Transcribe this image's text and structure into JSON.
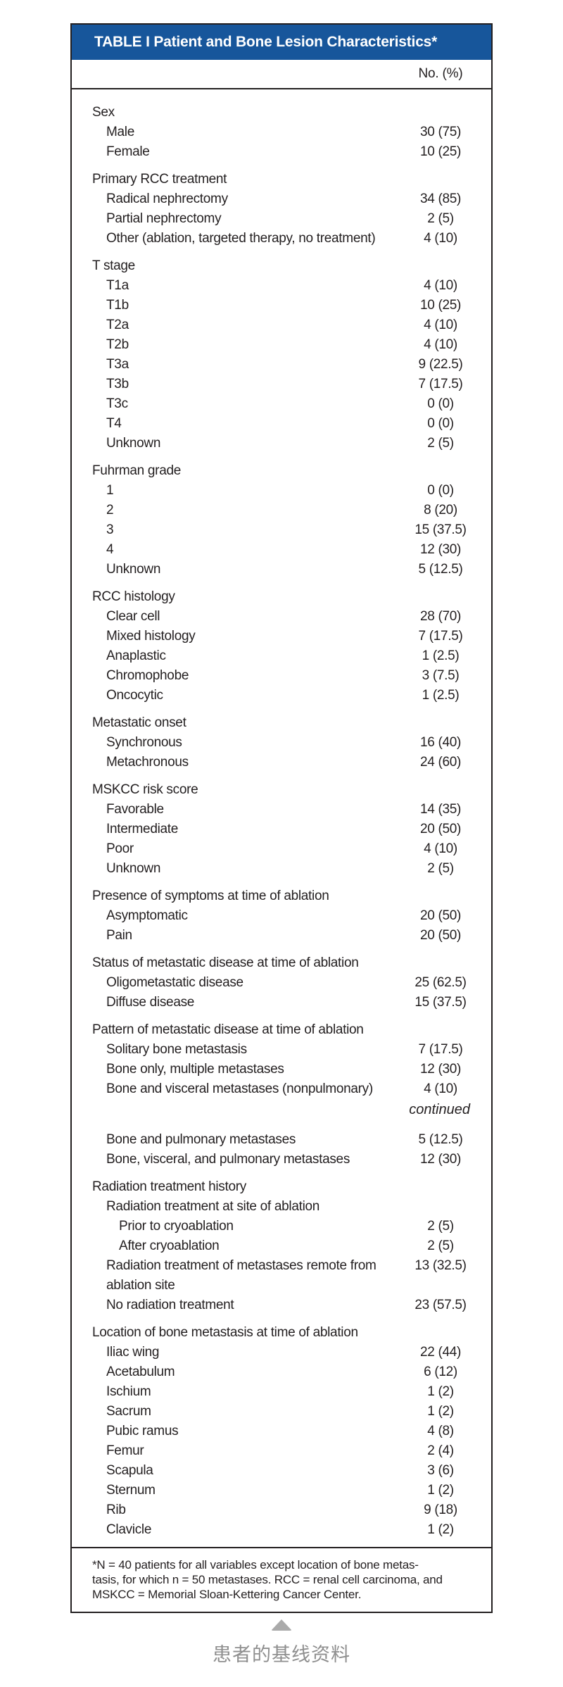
{
  "table": {
    "title": "TABLE I Patient and Bone Lesion Characteristics*",
    "column_header": "No. (%)",
    "colors": {
      "header_bg": "#17569b",
      "header_text": "#ffffff",
      "border": "#231f20",
      "body_text": "#231f20",
      "caption_gray": "#8f8f8f"
    },
    "rows": [
      {
        "type": "group",
        "label": "Sex"
      },
      {
        "type": "item",
        "label": "Male",
        "value": "30 (75)"
      },
      {
        "type": "item",
        "label": "Female",
        "value": "10 (25)"
      },
      {
        "type": "group",
        "label": "Primary RCC treatment"
      },
      {
        "type": "item",
        "label": "Radical nephrectomy",
        "value": "34 (85)"
      },
      {
        "type": "item",
        "label": "Partial nephrectomy",
        "value": "2 (5)"
      },
      {
        "type": "item",
        "label": "Other (ablation, targeted therapy, no treatment)",
        "value": "4 (10)"
      },
      {
        "type": "group",
        "label": "T stage"
      },
      {
        "type": "item",
        "label": "T1a",
        "value": "4 (10)"
      },
      {
        "type": "item",
        "label": "T1b",
        "value": "10 (25)"
      },
      {
        "type": "item",
        "label": "T2a",
        "value": "4 (10)"
      },
      {
        "type": "item",
        "label": "T2b",
        "value": "4 (10)"
      },
      {
        "type": "item",
        "label": "T3a",
        "value": "9 (22.5)"
      },
      {
        "type": "item",
        "label": "T3b",
        "value": "7 (17.5)"
      },
      {
        "type": "item",
        "label": "T3c",
        "value": "0 (0)"
      },
      {
        "type": "item",
        "label": "T4",
        "value": "0 (0)"
      },
      {
        "type": "item",
        "label": "Unknown",
        "value": "2 (5)"
      },
      {
        "type": "group",
        "label": "Fuhrman grade"
      },
      {
        "type": "item",
        "label": "1",
        "value": "0 (0)"
      },
      {
        "type": "item",
        "label": "2",
        "value": "8 (20)"
      },
      {
        "type": "item",
        "label": "3",
        "value": "15 (37.5)"
      },
      {
        "type": "item",
        "label": "4",
        "value": "12 (30)"
      },
      {
        "type": "item",
        "label": "Unknown",
        "value": "5 (12.5)"
      },
      {
        "type": "group",
        "label": "RCC histology"
      },
      {
        "type": "item",
        "label": "Clear cell",
        "value": "28 (70)"
      },
      {
        "type": "item",
        "label": "Mixed histology",
        "value": "7 (17.5)"
      },
      {
        "type": "item",
        "label": "Anaplastic",
        "value": "1 (2.5)"
      },
      {
        "type": "item",
        "label": "Chromophobe",
        "value": "3 (7.5)"
      },
      {
        "type": "item",
        "label": "Oncocytic",
        "value": "1 (2.5)"
      },
      {
        "type": "group",
        "label": "Metastatic onset"
      },
      {
        "type": "item",
        "label": "Synchronous",
        "value": "16 (40)"
      },
      {
        "type": "item",
        "label": "Metachronous",
        "value": "24 (60)"
      },
      {
        "type": "group",
        "label": "MSKCC risk score"
      },
      {
        "type": "item",
        "label": "Favorable",
        "value": "14 (35)"
      },
      {
        "type": "item",
        "label": "Intermediate",
        "value": "20 (50)"
      },
      {
        "type": "item",
        "label": "Poor",
        "value": "4 (10)"
      },
      {
        "type": "item",
        "label": "Unknown",
        "value": "2 (5)"
      },
      {
        "type": "group",
        "label": "Presence of symptoms at time of ablation"
      },
      {
        "type": "item",
        "label": "Asymptomatic",
        "value": "20 (50)"
      },
      {
        "type": "item",
        "label": "Pain",
        "value": "20 (50)"
      },
      {
        "type": "group",
        "label": "Status of metastatic disease at time of ablation"
      },
      {
        "type": "item",
        "label": "Oligometastatic disease",
        "value": "25 (62.5)"
      },
      {
        "type": "item",
        "label": "Diffuse disease",
        "value": "15 (37.5)"
      },
      {
        "type": "group",
        "label": "Pattern of metastatic disease at time of ablation"
      },
      {
        "type": "item",
        "label": "Solitary bone metastasis",
        "value": "7 (17.5)"
      },
      {
        "type": "item",
        "label": "Bone only, multiple metastases",
        "value": "12 (30)"
      },
      {
        "type": "item",
        "label": "Bone and visceral metastases (nonpulmonary)",
        "value": "4 (10)"
      },
      {
        "type": "continued",
        "label": "continued"
      },
      {
        "type": "item",
        "label": "Bone and pulmonary metastases",
        "value": "5 (12.5)"
      },
      {
        "type": "item",
        "label": "Bone, visceral, and pulmonary metastases",
        "value": "12 (30)"
      },
      {
        "type": "group",
        "label": "Radiation treatment history"
      },
      {
        "type": "item",
        "label": "Radiation treatment at site of ablation",
        "value": ""
      },
      {
        "type": "item2",
        "label": "Prior to cryoablation",
        "value": "2 (5)"
      },
      {
        "type": "item2",
        "label": "After cryoablation",
        "value": "2 (5)"
      },
      {
        "type": "itemwrap",
        "label": "Radiation treatment of metastases remote from",
        "label2": "ablation site",
        "value": "13 (32.5)"
      },
      {
        "type": "item",
        "label": "No radiation treatment",
        "value": "23 (57.5)"
      },
      {
        "type": "group",
        "label": "Location of bone metastasis at time of ablation"
      },
      {
        "type": "item",
        "label": "Iliac wing",
        "value": "22 (44)"
      },
      {
        "type": "item",
        "label": "Acetabulum",
        "value": "6 (12)"
      },
      {
        "type": "item",
        "label": "Ischium",
        "value": "1 (2)"
      },
      {
        "type": "item",
        "label": "Sacrum",
        "value": "1 (2)"
      },
      {
        "type": "item",
        "label": "Pubic ramus",
        "value": "4 (8)"
      },
      {
        "type": "item",
        "label": "Femur",
        "value": "2 (4)"
      },
      {
        "type": "item",
        "label": "Scapula",
        "value": "3 (6)"
      },
      {
        "type": "item",
        "label": "Sternum",
        "value": "1 (2)"
      },
      {
        "type": "item",
        "label": "Rib",
        "value": "9 (18)"
      },
      {
        "type": "item",
        "label": "Clavicle",
        "value": "1 (2)"
      }
    ],
    "footnote_lines": [
      "*N = 40 patients for all variables except location of bone metas-",
      "tasis, for which n = 50 metastases. RCC = renal cell carcinoma, and",
      "MSKCC = Memorial Sloan-Kettering Cancer Center."
    ]
  },
  "caption": {
    "text": "患者的基线资料"
  }
}
